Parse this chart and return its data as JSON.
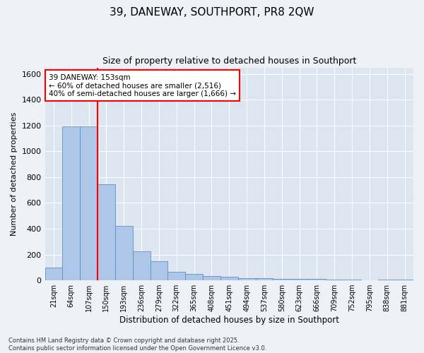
{
  "title": "39, DANEWAY, SOUTHPORT, PR8 2QW",
  "subtitle": "Size of property relative to detached houses in Southport",
  "xlabel": "Distribution of detached houses by size in Southport",
  "ylabel": "Number of detached properties",
  "categories": [
    "21sqm",
    "64sqm",
    "107sqm",
    "150sqm",
    "193sqm",
    "236sqm",
    "279sqm",
    "322sqm",
    "365sqm",
    "408sqm",
    "451sqm",
    "494sqm",
    "537sqm",
    "580sqm",
    "623sqm",
    "666sqm",
    "709sqm",
    "752sqm",
    "795sqm",
    "838sqm",
    "881sqm"
  ],
  "values": [
    100,
    1195,
    1195,
    745,
    420,
    225,
    150,
    65,
    50,
    35,
    30,
    15,
    15,
    12,
    10,
    10,
    7,
    5,
    2,
    6,
    4
  ],
  "bar_color": "#aec6e8",
  "bar_edge_color": "#5b8fc9",
  "redline_index": 3,
  "redline_label": "39 DANEWAY: 153sqm",
  "annotation_line1": "← 60% of detached houses are smaller (2,516)",
  "annotation_line2": "40% of semi-detached houses are larger (1,666) →",
  "ylim": [
    0,
    1650
  ],
  "yticks": [
    0,
    200,
    400,
    600,
    800,
    1000,
    1200,
    1400,
    1600
  ],
  "fig_background": "#eef2f8",
  "ax_background": "#dde6f0",
  "grid_color": "#ffffff",
  "footnote1": "Contains HM Land Registry data © Crown copyright and database right 2025.",
  "footnote2": "Contains public sector information licensed under the Open Government Licence v3.0."
}
